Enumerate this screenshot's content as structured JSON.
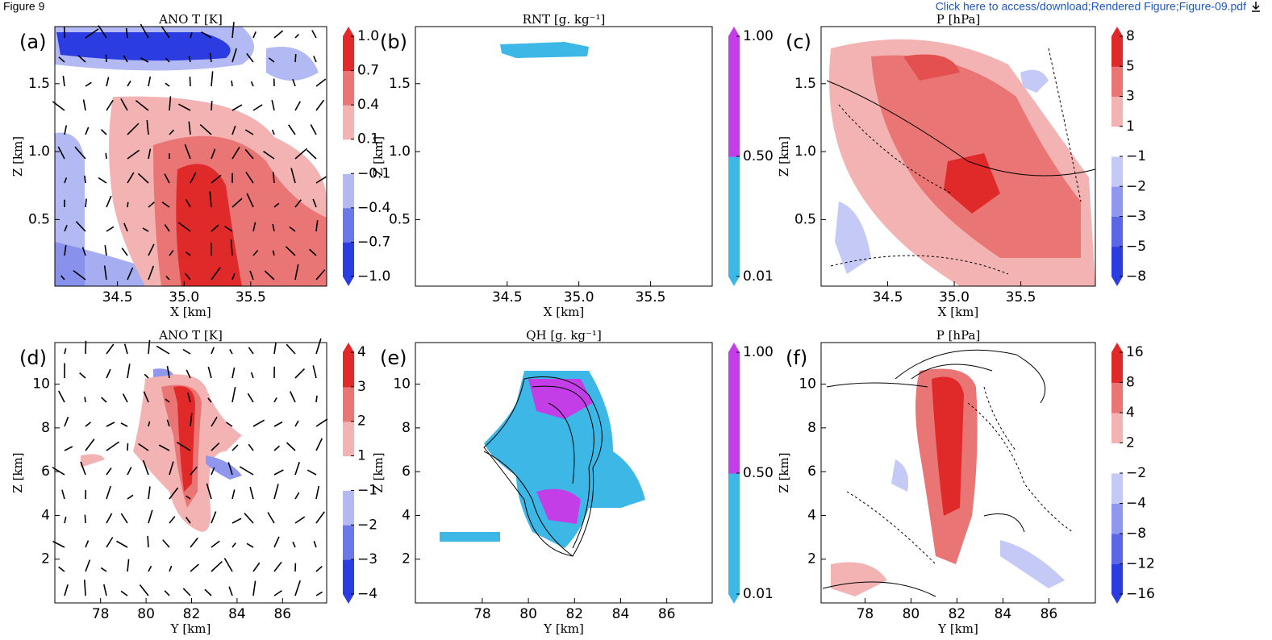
{
  "header": {
    "figure": "Figure 9",
    "link": "Click here to access/download;Rendered Figure;Figure-09.pdf"
  },
  "chart_data": [
    {
      "type": "contour",
      "label": "(a)",
      "title": "ANO T [K]",
      "x_label": "X [km]",
      "y_label": "Z [km]",
      "xlim": [
        34.03,
        36.07
      ],
      "ylim": [
        0.01,
        1.92
      ],
      "xticks": [
        34.5,
        {
          "value": 35,
          "label": "35.0"
        },
        35.5
      ],
      "yticks": [
        0.5,
        {
          "value": 1,
          "label": "1.0"
        },
        1.5
      ],
      "colorbar": {
        "ticks": [
          {
            "value": -1,
            "label": "−1.0"
          },
          {
            "value": -0.7,
            "label": "−0.7"
          },
          {
            "value": -0.4,
            "label": "−0.4"
          },
          {
            "value": -0.1,
            "label": "−0.1"
          },
          0.1,
          0.4,
          0.7,
          {
            "value": 1,
            "label": "1.0"
          }
        ],
        "colors": [
          "#2b3de0",
          "#6b78e8",
          "#b3b9f2",
          "#ffffff",
          "#f3b3b3",
          "#ea7575",
          "#e02a2a"
        ]
      }
    },
    {
      "type": "contour",
      "label": "(b)",
      "title": "RNT [g. kg⁻¹]",
      "x_label": "X [km]",
      "y_label": "Z [km]",
      "xlim": [
        33.86,
        35.93
      ],
      "ylim": [
        0.01,
        1.92
      ],
      "xticks": [
        34.5,
        {
          "value": 35,
          "label": "35.0"
        },
        35.5
      ],
      "yticks": [
        0.5,
        {
          "value": 1,
          "label": "1.0"
        },
        1.5
      ],
      "colorbar": {
        "ticks": [
          0.01,
          {
            "value": 0.5,
            "label": "0.50"
          },
          {
            "value": 1,
            "label": "1.00"
          }
        ],
        "colors": [
          "#3cb7e6",
          "#c43ee8"
        ]
      }
    },
    {
      "type": "contour",
      "label": "(c)",
      "title": "P [hPa]",
      "x_label": "X [km]",
      "y_label": "Z [km]",
      "xlim": [
        34.0,
        36.06
      ],
      "ylim": [
        0.01,
        1.92
      ],
      "xticks": [
        34.5,
        {
          "value": 35,
          "label": "35.0"
        },
        35.5
      ],
      "yticks": [
        0.5,
        {
          "value": 1,
          "label": "1.0"
        },
        1.5
      ],
      "colorbar": {
        "ticks": [
          {
            "value": -8,
            "label": "−8"
          },
          {
            "value": -5,
            "label": "−5"
          },
          {
            "value": -3,
            "label": "−3"
          },
          {
            "value": -2,
            "label": "−2"
          },
          {
            "value": -1,
            "label": "−1"
          },
          1,
          3,
          5,
          8
        ],
        "colors": [
          "#2b3de0",
          "#5a68e6",
          "#8f98ee",
          "#c4c9f5",
          "#ffffff",
          "#f3b3b3",
          "#ea7575",
          "#e02a2a"
        ]
      }
    },
    {
      "type": "contour",
      "label": "(d)",
      "title": "ANO T [K]",
      "x_label": "Y [km]",
      "y_label": "Z [km]",
      "xlim": [
        75.99,
        87.94
      ],
      "ylim": [
        0,
        11.9
      ],
      "xticks": [
        78,
        80,
        82,
        84,
        86
      ],
      "yticks": [
        2,
        4,
        6,
        8,
        10
      ],
      "colorbar": {
        "ticks": [
          {
            "value": -4,
            "label": "−4"
          },
          {
            "value": -3,
            "label": "−3"
          },
          {
            "value": -2,
            "label": "−2"
          },
          {
            "value": -1,
            "label": "−1"
          },
          1,
          2,
          3,
          4
        ],
        "colors": [
          "#2b3de0",
          "#6b78e8",
          "#b3b9f2",
          "#ffffff",
          "#f3b3b3",
          "#ea7575",
          "#e02a2a"
        ]
      }
    },
    {
      "type": "contour",
      "label": "(e)",
      "title": "QH [g. kg⁻¹]",
      "x_label": "Y [km]",
      "y_label": "Z [km]",
      "xlim": [
        75.1,
        87.97
      ],
      "ylim": [
        0,
        11.9
      ],
      "xticks": [
        78,
        80,
        82,
        84,
        86
      ],
      "yticks": [
        2,
        4,
        6,
        8,
        10
      ],
      "colorbar": {
        "ticks": [
          0.01,
          {
            "value": 0.5,
            "label": "0.50"
          },
          {
            "value": 1,
            "label": "1.00"
          }
        ],
        "colors": [
          "#3cb7e6",
          "#c43ee8"
        ]
      }
    },
    {
      "type": "contour",
      "label": "(f)",
      "title": "P [hPa]",
      "x_label": "Y [km]",
      "y_label": "Z [km]",
      "xlim": [
        76.09,
        88.02
      ],
      "ylim": [
        0,
        11.9
      ],
      "xticks": [
        78,
        80,
        82,
        84,
        86
      ],
      "yticks": [
        2,
        4,
        6,
        8,
        10
      ],
      "colorbar": {
        "ticks": [
          {
            "value": -16,
            "label": "−16"
          },
          {
            "value": -12,
            "label": "−12"
          },
          {
            "value": -8,
            "label": "−8"
          },
          {
            "value": -4,
            "label": "−4"
          },
          {
            "value": -2,
            "label": "−2"
          },
          2,
          4,
          8,
          16
        ],
        "colors": [
          "#2b3de0",
          "#5a68e6",
          "#8f98ee",
          "#c4c9f5",
          "#ffffff",
          "#f3b3b3",
          "#ea7575",
          "#e02a2a"
        ]
      }
    }
  ]
}
